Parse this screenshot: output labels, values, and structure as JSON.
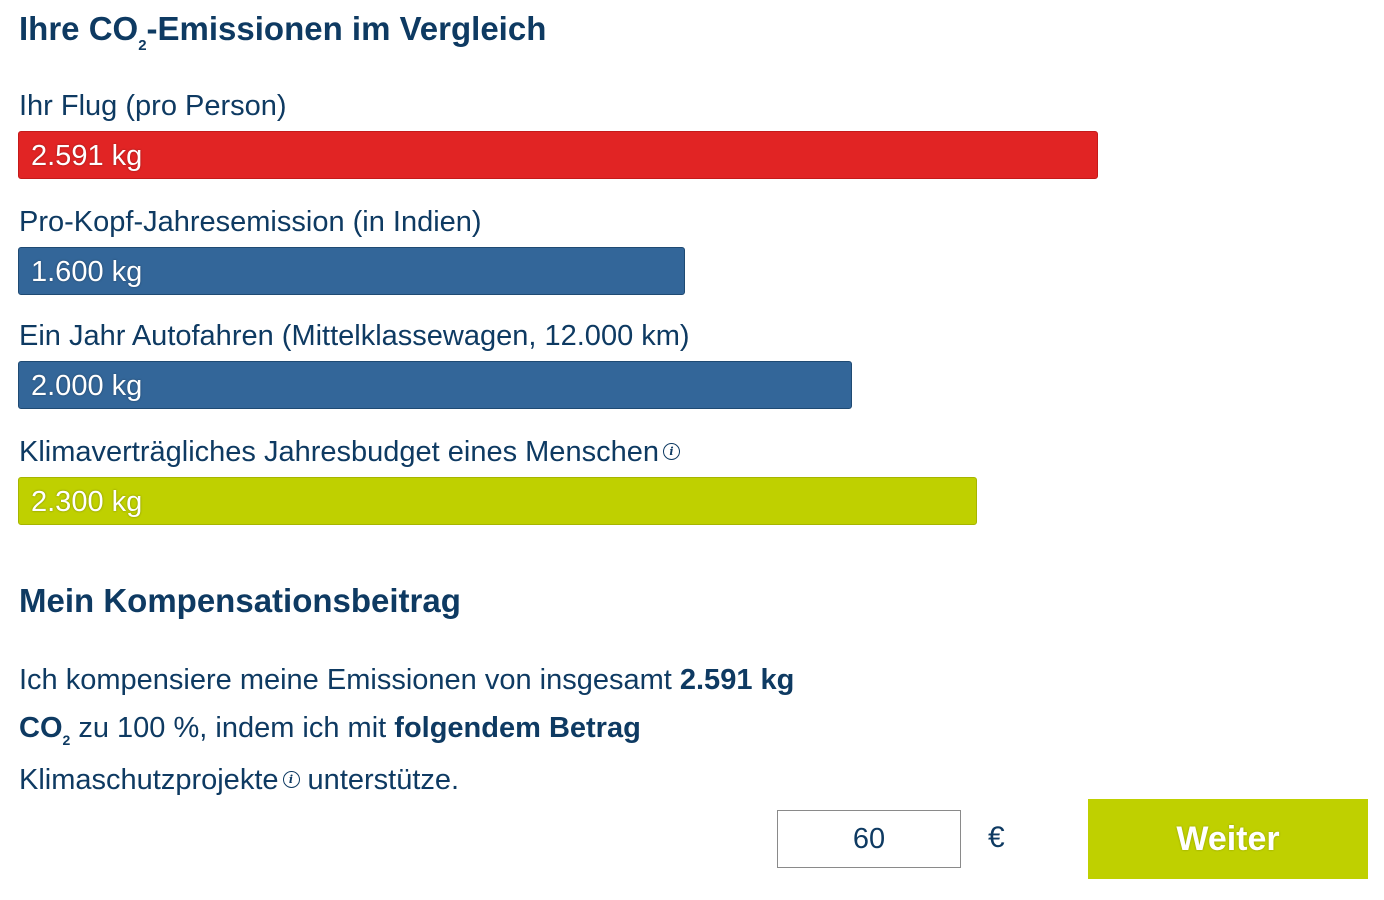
{
  "title": {
    "prefix": "Ihre CO",
    "subscript": "2",
    "suffix": "-Emissionen im Vergleich"
  },
  "comparison": {
    "max_kg": 2591,
    "items": [
      {
        "label": "Ihr Flug (pro Person)",
        "value_text": "2.591 kg",
        "value_kg": 2591,
        "color": "#e12424",
        "border": "#c41a1a",
        "info": false
      },
      {
        "label": "Pro-Kopf-Jahresemission (in Indien)",
        "value_text": "1.600 kg",
        "value_kg": 1600,
        "color": "#336699",
        "border": "#1f4a73",
        "info": false
      },
      {
        "label": "Ein Jahr Autofahren (Mittelklassewagen, 12.000 km)",
        "value_text": "2.000 kg",
        "value_kg": 2000,
        "color": "#336699",
        "border": "#1f4a73",
        "info": false
      },
      {
        "label": "Klimaverträgliches Jahresbudget eines Menschen",
        "value_text": "2.300 kg",
        "value_kg": 2300,
        "color": "#bfd000",
        "border": "#a6b500",
        "info": true
      }
    ]
  },
  "compensation": {
    "heading": "Mein Kompensationsbeitrag",
    "text_1": "Ich kompensiere meine Emissionen von insgesamt ",
    "amount_bold": "2.591 kg CO",
    "amount_sub": "2",
    "text_2": " zu 100  %, indem ich mit ",
    "bold_2": "folgendem Betrag",
    "text_3": " Klimaschutzprojekte",
    "text_4": " unterstütze.",
    "input_value": "60",
    "currency": "€",
    "button_label": "Weiter",
    "button_color": "#bfd000"
  },
  "icons": {
    "info": "info-icon",
    "info_glyph": "i"
  },
  "colors": {
    "text": "#0e3a62",
    "flight": "#e12424",
    "comparison": "#336699",
    "budget": "#bfd000"
  }
}
